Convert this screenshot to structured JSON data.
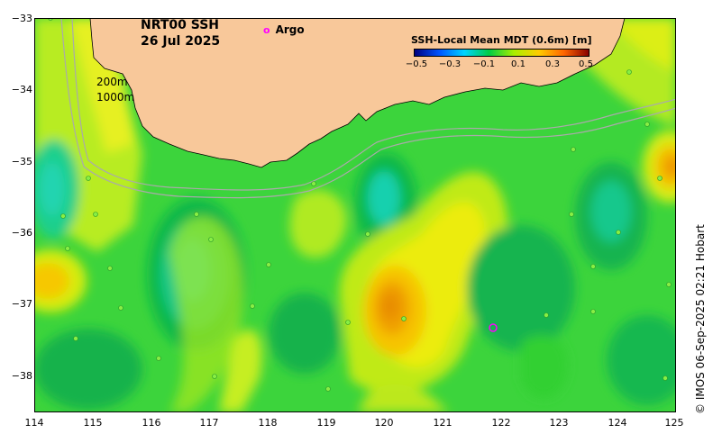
{
  "map": {
    "title_line1": "NRT00 SSH",
    "title_line2": "26 Jul 2025",
    "argo_marker": "o",
    "argo_label": "Argo",
    "contour_label_200": "200m",
    "contour_label_1000": "1000m",
    "credit": "© IMOS 06-Sep-2025 02:21 Hobart",
    "lat_ticks": [
      "−33",
      "−34",
      "−35",
      "−36",
      "−37",
      "−38"
    ],
    "lon_ticks": [
      "114",
      "115",
      "116",
      "117",
      "118",
      "119",
      "120",
      "121",
      "122",
      "123",
      "124",
      "125"
    ],
    "colorbar": {
      "title": "SSH-Local Mean MDT (0.6m) [m]",
      "ticks": [
        "−0.5",
        "−0.3",
        "−0.1",
        "0.1",
        "0.3",
        "0.5"
      ],
      "range": [
        -0.5,
        0.5
      ],
      "colors": [
        "#00007f",
        "#0055ff",
        "#00d4ff",
        "#00cc44",
        "#aaee00",
        "#ffcc00",
        "#ff6600",
        "#880000"
      ]
    },
    "colors": {
      "land": "#f8c89a",
      "background_field": "#3cd43c",
      "high_anomaly": "#f08c00",
      "low_anomaly": "#10cfa0",
      "argo": "#ff00ff",
      "bathymetry": "#aaaaaa"
    }
  }
}
